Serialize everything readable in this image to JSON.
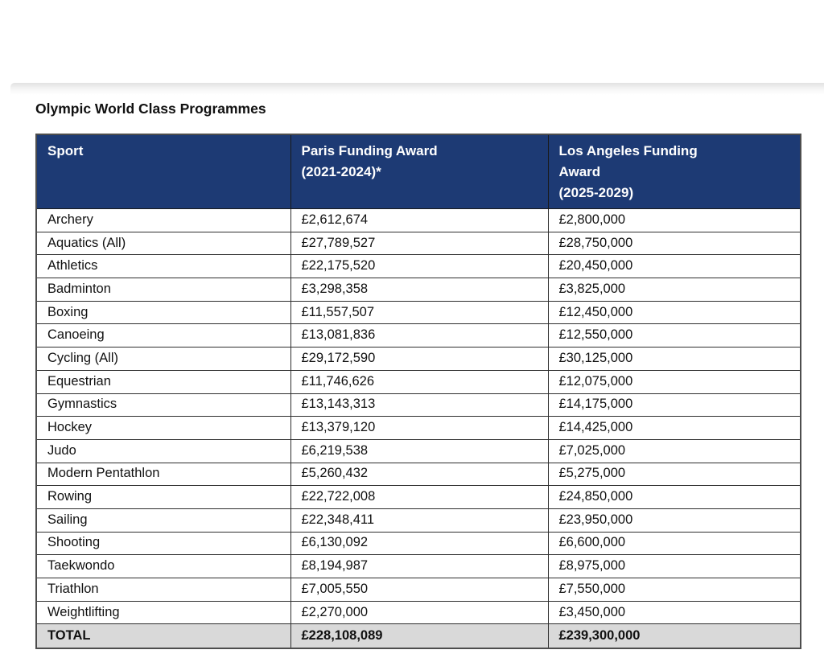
{
  "page": {
    "title": "Olympic World Class Programmes"
  },
  "table": {
    "columns": [
      "Sport",
      "Paris Funding Award\n(2021-2024)*",
      "Los Angeles Funding\nAward\n(2025-2029)"
    ],
    "rows": [
      [
        "Archery",
        "£2,612,674",
        "£2,800,000"
      ],
      [
        "Aquatics (All)",
        "£27,789,527",
        "£28,750,000"
      ],
      [
        "Athletics",
        "£22,175,520",
        "£20,450,000"
      ],
      [
        "Badminton",
        "£3,298,358",
        "£3,825,000"
      ],
      [
        "Boxing",
        "£11,557,507",
        "£12,450,000"
      ],
      [
        "Canoeing",
        "£13,081,836",
        "£12,550,000"
      ],
      [
        "Cycling (All)",
        "£29,172,590",
        "£30,125,000"
      ],
      [
        "Equestrian",
        "£11,746,626",
        "£12,075,000"
      ],
      [
        "Gymnastics",
        "£13,143,313",
        "£14,175,000"
      ],
      [
        "Hockey",
        "£13,379,120",
        "£14,425,000"
      ],
      [
        "Judo",
        "£6,219,538",
        "£7,025,000"
      ],
      [
        "Modern Pentathlon",
        "£5,260,432",
        "£5,275,000"
      ],
      [
        "Rowing",
        "£22,722,008",
        "£24,850,000"
      ],
      [
        "Sailing",
        "£22,348,411",
        "£23,950,000"
      ],
      [
        "Shooting",
        "£6,130,092",
        "£6,600,000"
      ],
      [
        "Taekwondo",
        "£8,194,987",
        "£8,975,000"
      ],
      [
        "Triathlon",
        "£7,005,550",
        "£7,550,000"
      ],
      [
        "Weightlifting",
        "£2,270,000",
        "£3,450,000"
      ]
    ],
    "total": [
      "TOTAL",
      "£228,108,089",
      "£239,300,000"
    ],
    "colors": {
      "header_bg": "#1d3a74",
      "header_text": "#ffffff",
      "total_bg": "#d9d9d9",
      "border": "#2e2e2e"
    }
  }
}
